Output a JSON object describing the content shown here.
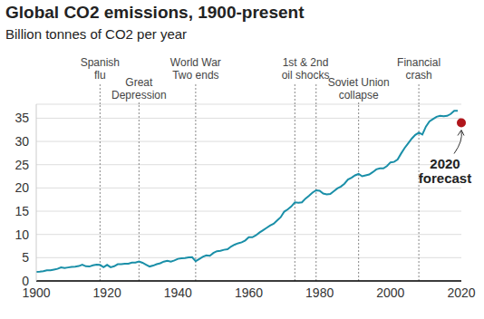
{
  "chart_data": {
    "type": "line",
    "title": "Global CO2 emissions, 1900-present",
    "subtitle": "Billion tonnes of CO2 per year",
    "color": "#1a8fa8",
    "x": [
      1900,
      1901,
      1902,
      1903,
      1904,
      1905,
      1906,
      1907,
      1908,
      1909,
      1910,
      1911,
      1912,
      1913,
      1914,
      1915,
      1916,
      1917,
      1918,
      1919,
      1920,
      1921,
      1922,
      1923,
      1924,
      1925,
      1926,
      1927,
      1928,
      1929,
      1930,
      1931,
      1932,
      1933,
      1934,
      1935,
      1936,
      1937,
      1938,
      1939,
      1940,
      1941,
      1942,
      1943,
      1944,
      1945,
      1946,
      1947,
      1948,
      1949,
      1950,
      1951,
      1952,
      1953,
      1954,
      1955,
      1956,
      1957,
      1958,
      1959,
      1960,
      1961,
      1962,
      1963,
      1964,
      1965,
      1966,
      1967,
      1968,
      1969,
      1970,
      1971,
      1972,
      1973,
      1974,
      1975,
      1976,
      1977,
      1978,
      1979,
      1980,
      1981,
      1982,
      1983,
      1984,
      1985,
      1986,
      1987,
      1988,
      1989,
      1990,
      1991,
      1992,
      1993,
      1994,
      1995,
      1996,
      1997,
      1998,
      1999,
      2000,
      2001,
      2002,
      2003,
      2004,
      2005,
      2006,
      2007,
      2008,
      2009,
      2010,
      2011,
      2012,
      2013,
      2014,
      2015,
      2016,
      2017,
      2018,
      2019
    ],
    "values": [
      1.95,
      2.0,
      2.1,
      2.3,
      2.3,
      2.45,
      2.6,
      2.9,
      2.8,
      2.9,
      3.0,
      3.05,
      3.2,
      3.5,
      3.15,
      3.1,
      3.35,
      3.5,
      3.45,
      2.95,
      3.45,
      2.95,
      3.15,
      3.6,
      3.6,
      3.7,
      3.7,
      3.95,
      3.95,
      4.2,
      3.9,
      3.5,
      3.1,
      3.3,
      3.6,
      3.8,
      4.15,
      4.35,
      4.15,
      4.4,
      4.75,
      4.85,
      4.9,
      5.05,
      5.1,
      4.25,
      4.7,
      5.2,
      5.5,
      5.4,
      6.0,
      6.4,
      6.5,
      6.7,
      6.8,
      7.4,
      7.8,
      8.1,
      8.3,
      8.7,
      9.4,
      9.4,
      9.8,
      10.4,
      10.9,
      11.4,
      11.9,
      12.3,
      13.0,
      13.7,
      14.9,
      15.4,
      16.0,
      16.9,
      16.8,
      16.9,
      17.7,
      18.3,
      19.0,
      19.5,
      19.4,
      18.8,
      18.6,
      18.7,
      19.3,
      19.9,
      20.3,
      20.9,
      21.8,
      22.2,
      22.7,
      23.0,
      22.5,
      22.7,
      22.9,
      23.4,
      24.0,
      24.2,
      24.2,
      24.7,
      25.5,
      25.6,
      26.1,
      27.4,
      28.6,
      29.6,
      30.6,
      31.4,
      31.9,
      31.5,
      33.2,
      34.3,
      34.8,
      35.3,
      35.5,
      35.4,
      35.5,
      35.9,
      36.6,
      36.6
    ],
    "xlim": [
      1900,
      2020
    ],
    "xticks": [
      1900,
      1920,
      1940,
      1960,
      1980,
      2000,
      2020
    ],
    "ylim": [
      0,
      38
    ],
    "yticks": [
      0,
      5,
      10,
      15,
      20,
      25,
      30,
      35
    ],
    "grid": true,
    "annotations": [
      {
        "label": [
          "Spanish",
          "flu"
        ],
        "x": [
          1918
        ]
      },
      {
        "label": [
          "Great",
          "Depression"
        ],
        "x": [
          1929
        ]
      },
      {
        "label": [
          "World War",
          "Two ends"
        ],
        "x": [
          1945
        ]
      },
      {
        "label": [
          "1st & 2nd",
          "oil shocks"
        ],
        "x": [
          1973,
          1979
        ]
      },
      {
        "label": [
          "Soviet Union",
          "collapse"
        ],
        "x": [
          1991
        ]
      },
      {
        "label": [
          "Financial",
          "crash"
        ],
        "x": [
          2008
        ]
      }
    ],
    "forecast": {
      "x": 2020,
      "value": 34,
      "label": [
        "2020",
        "forecast"
      ],
      "color": "#b0161c"
    }
  }
}
